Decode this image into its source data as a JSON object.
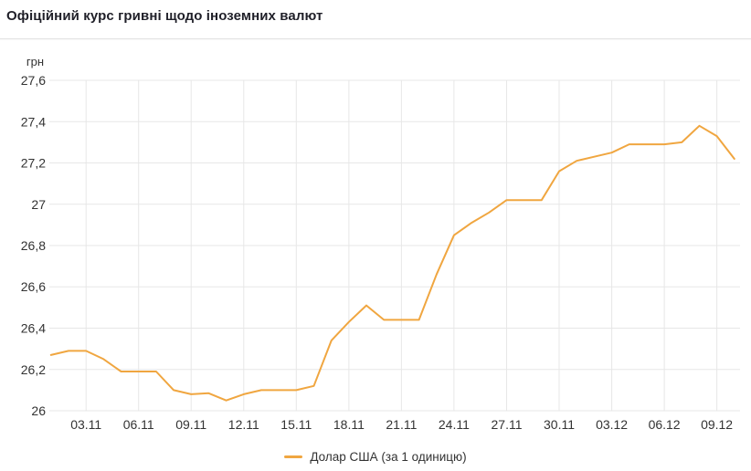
{
  "header": {
    "title": "Офіційний курс гривні щодо іноземних валют"
  },
  "colors": {
    "line": "#f0a640",
    "grid": "#e7e7e7",
    "axis_text": "#333333",
    "title_text": "#1f1f28",
    "divider": "#e2e2e2",
    "background": "#ffffff"
  },
  "chart_data": {
    "type": "line",
    "title": "Офіційний курс гривні щодо іноземних валют",
    "ylabel": "грн",
    "xlabel": "",
    "ylim": [
      26,
      27.6
    ],
    "grid": true,
    "legend_position": "bottom",
    "y_ticks": [
      {
        "value": 26,
        "label": "26"
      },
      {
        "value": 26.2,
        "label": "26,2"
      },
      {
        "value": 26.4,
        "label": "26,4"
      },
      {
        "value": 26.6,
        "label": "26,6"
      },
      {
        "value": 26.8,
        "label": "26,8"
      },
      {
        "value": 27,
        "label": "27"
      },
      {
        "value": 27.2,
        "label": "27,2"
      },
      {
        "value": 27.4,
        "label": "27,4"
      },
      {
        "value": 27.6,
        "label": "27,6"
      }
    ],
    "x_ticks": [
      {
        "index": 2,
        "label": "03.11"
      },
      {
        "index": 5,
        "label": "06.11"
      },
      {
        "index": 8,
        "label": "09.11"
      },
      {
        "index": 11,
        "label": "12.11"
      },
      {
        "index": 14,
        "label": "15.11"
      },
      {
        "index": 17,
        "label": "18.11"
      },
      {
        "index": 20,
        "label": "21.11"
      },
      {
        "index": 23,
        "label": "24.11"
      },
      {
        "index": 26,
        "label": "27.11"
      },
      {
        "index": 29,
        "label": "30.11"
      },
      {
        "index": 32,
        "label": "03.12"
      },
      {
        "index": 35,
        "label": "06.12"
      },
      {
        "index": 38,
        "label": "09.12"
      }
    ],
    "series": [
      {
        "name": "Долар США (за 1 одиницю)",
        "color": "#f0a640",
        "x": [
          "01.11",
          "02.11",
          "03.11",
          "04.11",
          "05.11",
          "06.11",
          "07.11",
          "08.11",
          "09.11",
          "10.11",
          "11.11",
          "12.11",
          "13.11",
          "14.11",
          "15.11",
          "16.11",
          "17.11",
          "18.11",
          "19.11",
          "20.11",
          "21.11",
          "22.11",
          "23.11",
          "24.11",
          "25.11",
          "26.11",
          "27.11",
          "28.11",
          "29.11",
          "30.11",
          "01.12",
          "02.12",
          "03.12",
          "04.12",
          "05.12",
          "06.12",
          "07.12",
          "08.12",
          "09.12",
          "10.12"
        ],
        "values": [
          26.27,
          26.29,
          26.29,
          26.25,
          26.19,
          26.19,
          26.19,
          26.1,
          26.08,
          26.085,
          26.05,
          26.08,
          26.1,
          26.1,
          26.1,
          26.12,
          26.34,
          26.43,
          26.51,
          26.44,
          26.44,
          26.44,
          26.66,
          26.85,
          26.91,
          26.96,
          27.02,
          27.02,
          27.02,
          27.16,
          27.21,
          27.23,
          27.25,
          27.29,
          27.29,
          27.29,
          27.3,
          27.38,
          27.33,
          27.22
        ]
      }
    ]
  },
  "legend": {
    "items": [
      {
        "label": "Долар США (за 1 одиницю)",
        "color": "#f0a640"
      }
    ]
  }
}
